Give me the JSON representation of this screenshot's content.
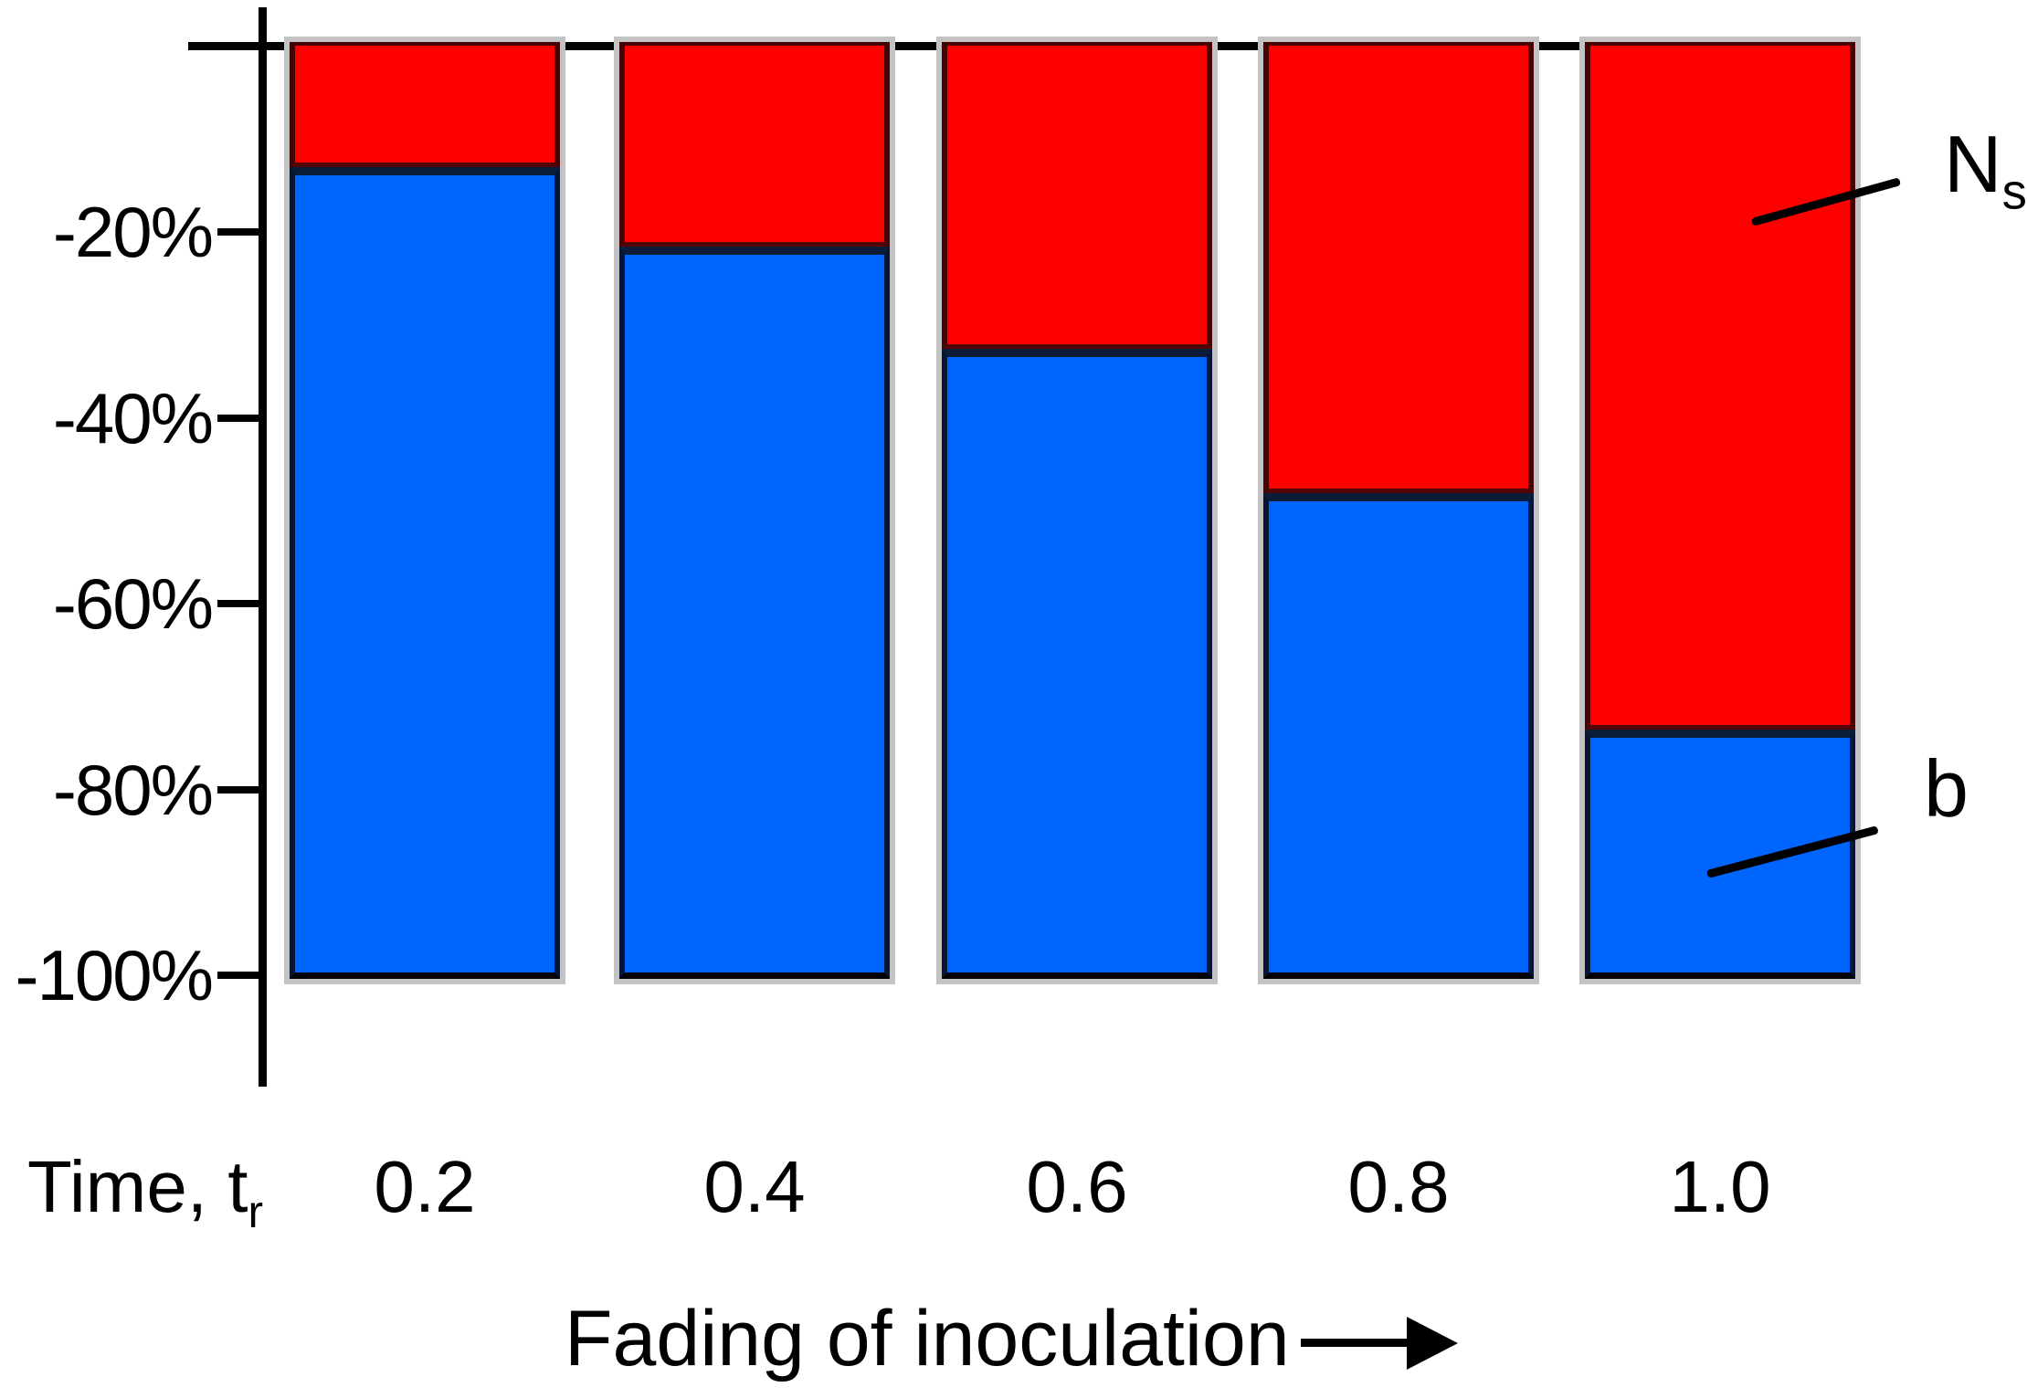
{
  "chart_data": {
    "type": "bar",
    "variant": "stacked-vertical-downward",
    "categories": [
      "0.2",
      "0.4",
      "0.6",
      "0.8",
      "1.0"
    ],
    "series": [
      {
        "name": "Ns",
        "label_main": "N",
        "label_sub": "s",
        "color": "#fe0000",
        "values_pct": [
          13.5,
          22,
          33,
          48.5,
          74
        ]
      },
      {
        "name": "b",
        "label_main": "b",
        "label_sub": "",
        "color": "#0065fc",
        "values_pct": [
          86.5,
          78,
          67,
          51.5,
          26
        ]
      }
    ],
    "value_semantics": "share of 100% decline, drawn downward from 0 to -100%",
    "y_ticks": [
      "-20%",
      "-40%",
      "-60%",
      "-80%",
      "-100%"
    ],
    "y_range_pct": [
      0,
      -100
    ],
    "x_axis_title_prefix": "Time, t",
    "x_axis_title_sub": "r",
    "footer_label": "Fading of inoculation",
    "footer_arrow": "right",
    "grid": false,
    "legend_position": "right-annotations"
  },
  "colors": {
    "ns_red": "#fe0000",
    "b_blue": "#0065fc",
    "axis_black": "#000000",
    "divider_navy": "#0a1c38",
    "divider_maroon": "#520507",
    "bar_shadow_gray": "#c3c3c3",
    "background": "#ffffff"
  }
}
